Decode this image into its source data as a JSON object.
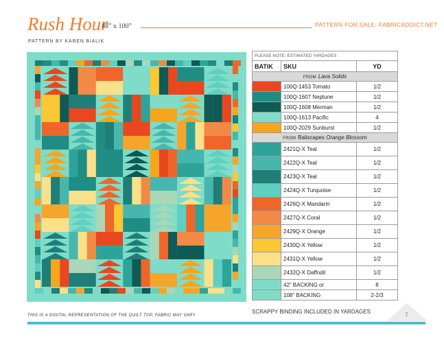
{
  "header": {
    "title": "Rush Hour",
    "dimensions": "88” x 100”",
    "sale": "PATTERN FOR SALE: FABRICADDICT.NET",
    "author": "PATTERN BY KAREN BIALIK"
  },
  "table": {
    "note": "PLEASE NOTE: ESTIMATED YARDAGES",
    "headers": {
      "batik": "BATIK",
      "sku": "SKU",
      "yd": "YD"
    },
    "group1": {
      "prefix": "FROM",
      "name": "Lava Solids"
    },
    "group2": {
      "prefix": "FROM",
      "name": "Baliscapes",
      "collection": "Orange Blossom"
    },
    "solids": [
      {
        "sku": "100Q-1453 Tomato",
        "yd": "1/2",
        "color": "#e9471f"
      },
      {
        "sku": "100Q-1607 Neptune",
        "yd": "1/2",
        "color": "#1f8d84"
      },
      {
        "sku": "100Q-1608 Merman",
        "yd": "1/2",
        "color": "#0f5a55"
      },
      {
        "sku": "100Q-1613 Pacific",
        "yd": "4",
        "color": "#7fdcc8"
      },
      {
        "sku": "100Q-2029 Sunburst",
        "yd": "1/2",
        "color": "#f7a51c"
      }
    ],
    "prints": [
      {
        "sku": "2421Q-X Teal",
        "yd": "1/2",
        "color": "#2ea39a"
      },
      {
        "sku": "2422Q-X Teal",
        "yd": "1/2",
        "color": "#47b7ad"
      },
      {
        "sku": "2423Q-X Teal",
        "yd": "1/2",
        "color": "#1e7f78"
      },
      {
        "sku": "2424Q-X Turquoise",
        "yd": "1/2",
        "color": "#5fcfc2"
      },
      {
        "sku": "2426Q-X Mandarin",
        "yd": "1/2",
        "color": "#f0652a"
      },
      {
        "sku": "2427Q-X Coral",
        "yd": "1/2",
        "color": "#f28a45"
      },
      {
        "sku": "2429Q-X Orange",
        "yd": "1/2",
        "color": "#f7a52a"
      },
      {
        "sku": "2430Q-X Yellow",
        "yd": "1/2",
        "color": "#fbc733"
      },
      {
        "sku": "2431Q-X Yellow",
        "yd": "1/2",
        "color": "#fbe08a"
      },
      {
        "sku": "2432Q-X Daffodil",
        "yd": "1/2",
        "color": "#a9d7b8"
      }
    ],
    "backing": [
      {
        "label": "42” BACKING or",
        "yd": "8"
      },
      {
        "label": "108” BACKING",
        "yd": "2-2/3"
      }
    ]
  },
  "binding_note": "SCRAPPY BINDING INCLUDED IN YARDAGES",
  "disclaimer": "THIS IS A DIGITAL REPRESENTATION OF THE QUILT TOP, FABRIC MAY VARY",
  "page_number": "7",
  "colors": {
    "accent": "#f07d2c",
    "footer": "#49bfcf"
  }
}
